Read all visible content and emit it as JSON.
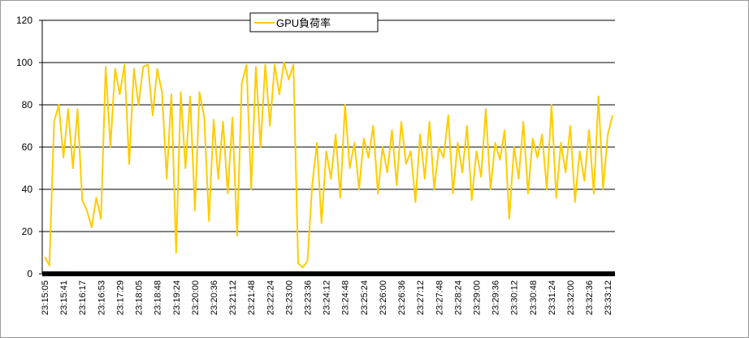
{
  "chart_data": {
    "type": "line",
    "categories": [
      "23:15:05",
      null,
      null,
      null,
      "23:15:41",
      null,
      null,
      null,
      "23:16:17",
      null,
      null,
      null,
      "23:16:53",
      null,
      null,
      null,
      "23:17:29",
      null,
      null,
      null,
      "23:18:05",
      null,
      null,
      null,
      "23:18:48",
      null,
      null,
      null,
      "23:19:24",
      null,
      null,
      null,
      "23:20:00",
      null,
      null,
      null,
      "23:20:36",
      null,
      null,
      null,
      "23:21:12",
      null,
      null,
      null,
      "23:21:48",
      null,
      null,
      null,
      "23:22:24",
      null,
      null,
      null,
      "23:23:00",
      null,
      null,
      null,
      "23:23:36",
      null,
      null,
      null,
      "23:24:12",
      null,
      null,
      null,
      "23:24:48",
      null,
      null,
      null,
      "23:25:24",
      null,
      null,
      null,
      "23:26:00",
      null,
      null,
      null,
      "23:26:36",
      null,
      null,
      null,
      "23:27:12",
      null,
      null,
      null,
      "23:27:48",
      null,
      null,
      null,
      "23:28:24",
      null,
      null,
      null,
      "23:29:00",
      null,
      null,
      null,
      "23:29:36",
      null,
      null,
      null,
      "23:30:12",
      null,
      null,
      null,
      "23:30:48",
      null,
      null,
      null,
      "23:31:24",
      null,
      null,
      null,
      "23:32:00",
      null,
      null,
      null,
      "23:32:36",
      null,
      null,
      null,
      "23:33:12",
      null
    ],
    "series": [
      {
        "name": "GPU負荷率",
        "color": "#ffcc00",
        "values": [
          8,
          4,
          72,
          80,
          55,
          78,
          50,
          78,
          35,
          30,
          22,
          36,
          26,
          98,
          60,
          97,
          85,
          99,
          52,
          97,
          80,
          98,
          99,
          75,
          97,
          86,
          45,
          85,
          10,
          86,
          50,
          84,
          30,
          86,
          74,
          25,
          73,
          45,
          72,
          38,
          74,
          18,
          90,
          99,
          40,
          98,
          60,
          99,
          70,
          99,
          85,
          100,
          92,
          99,
          5,
          3,
          6,
          42,
          62,
          24,
          58,
          45,
          66,
          36,
          80,
          50,
          62,
          40,
          64,
          55,
          70,
          38,
          60,
          48,
          68,
          42,
          72,
          52,
          58,
          34,
          66,
          45,
          72,
          40,
          60,
          55,
          75,
          38,
          62,
          48,
          70,
          35,
          58,
          46,
          78,
          40,
          62,
          54,
          68,
          26,
          60,
          45,
          72,
          38,
          64,
          55,
          66,
          40,
          80,
          36,
          62,
          48,
          70,
          34,
          58,
          44,
          68,
          38,
          84,
          40,
          66,
          75
        ]
      }
    ],
    "ylim": [
      0,
      120
    ],
    "yticks": [
      0,
      20,
      40,
      60,
      80,
      100,
      120
    ],
    "grid": true,
    "legend": "top"
  }
}
